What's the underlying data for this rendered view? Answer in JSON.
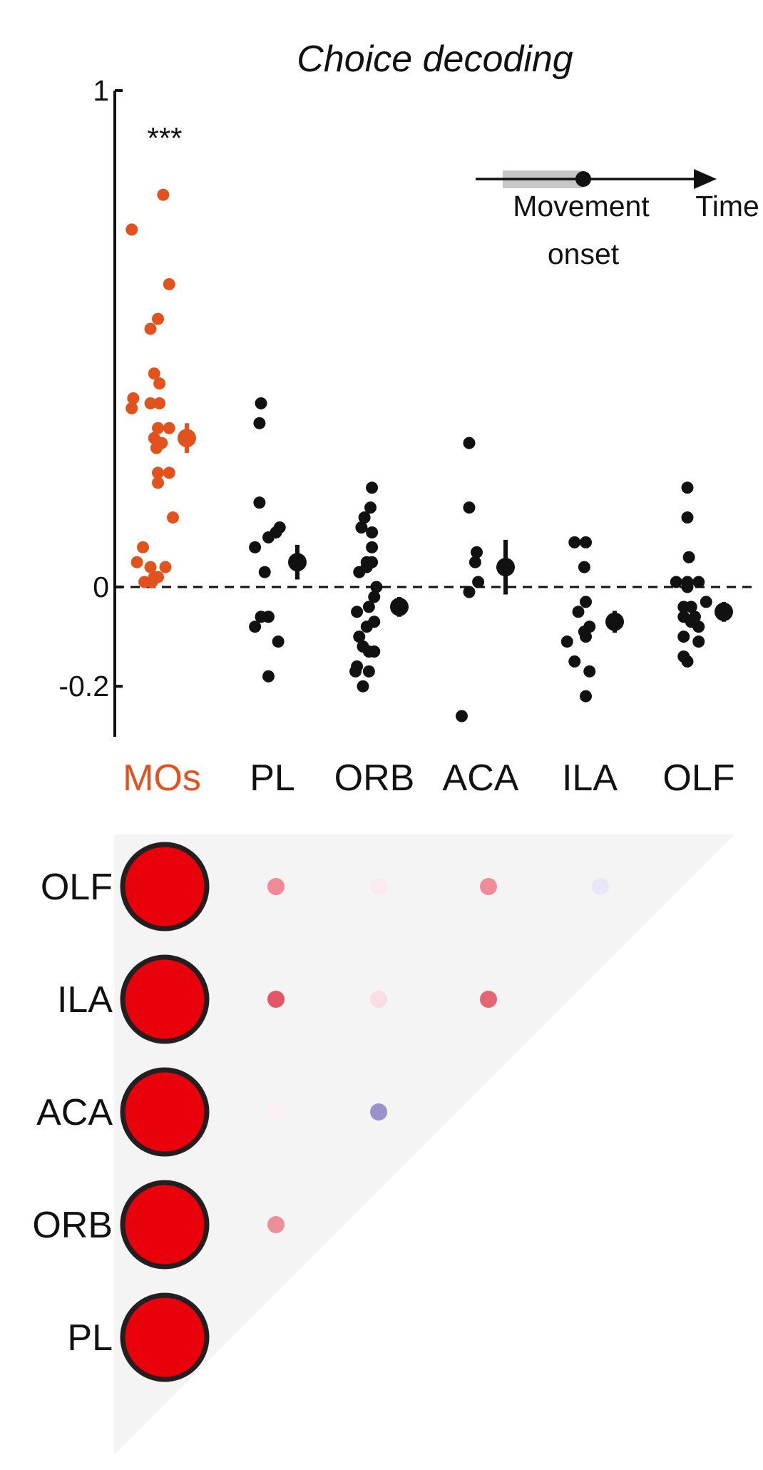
{
  "colors": {
    "mos": "#e2521d",
    "other": "#111111",
    "axis": "#111111",
    "big_dot_fill": "#e8000b",
    "triangle": "#f4f4f5"
  },
  "chart_data": [
    {
      "type": "scatter",
      "title": "Choice decoding",
      "ylim": [
        -0.3,
        1
      ],
      "yticks": [
        {
          "value": 1,
          "label": "1"
        },
        {
          "value": 0,
          "label": "0"
        },
        {
          "value": -0.2,
          "label": "-0.2"
        }
      ],
      "zero_line": "dashed",
      "categories": [
        "MOs",
        "PL",
        "ORB",
        "ACA",
        "ILA",
        "OLF"
      ],
      "significance": {
        "category": "MOs",
        "label": "***"
      },
      "inset": {
        "arrow_label": "Time",
        "marker_label_line1": "Movement",
        "marker_label_line2": "onset"
      },
      "series": [
        {
          "category": "MOs",
          "points": [
            [
              -0.045,
              0.72
            ],
            [
              -0.003,
              0.79
            ],
            [
              0.005,
              0.61
            ],
            [
              -0.02,
              0.52
            ],
            [
              -0.01,
              0.54
            ],
            [
              -0.015,
              0.43
            ],
            [
              -0.008,
              0.41
            ],
            [
              -0.043,
              0.38
            ],
            [
              -0.045,
              0.36
            ],
            [
              -0.02,
              0.37
            ],
            [
              -0.008,
              0.37
            ],
            [
              -0.01,
              0.32
            ],
            [
              -0.015,
              0.3
            ],
            [
              0.005,
              0.32
            ],
            [
              -0.005,
              0.29
            ],
            [
              -0.012,
              0.28
            ],
            [
              -0.01,
              0.23
            ],
            [
              0.005,
              0.23
            ],
            [
              -0.01,
              0.21
            ],
            [
              0.01,
              0.14
            ],
            [
              -0.03,
              0.08
            ],
            [
              -0.038,
              0.05
            ],
            [
              -0.02,
              0.04
            ],
            [
              -0.015,
              0.02
            ],
            [
              0.0,
              0.04
            ],
            [
              -0.028,
              0.01
            ],
            [
              -0.018,
              0.01
            ],
            [
              -0.01,
              0.02
            ]
          ],
          "mean": 0.3,
          "err": 0.03
        },
        {
          "category": "PL",
          "points": [
            [
              -0.02,
              0.37
            ],
            [
              -0.022,
              0.33
            ],
            [
              -0.022,
              0.17
            ],
            [
              -0.028,
              0.08
            ],
            [
              -0.01,
              0.1
            ],
            [
              -0.015,
              0.03
            ],
            [
              0.005,
              0.12
            ],
            [
              0.0,
              0.11
            ],
            [
              -0.028,
              -0.08
            ],
            [
              -0.02,
              -0.06
            ],
            [
              -0.01,
              -0.06
            ],
            [
              0.003,
              -0.11
            ],
            [
              -0.01,
              -0.18
            ]
          ],
          "mean": 0.05,
          "err": 0.035
        },
        {
          "category": "ORB",
          "points": [
            [
              -0.008,
              0.2
            ],
            [
              -0.01,
              0.16
            ],
            [
              -0.018,
              0.14
            ],
            [
              -0.022,
              0.12
            ],
            [
              -0.008,
              0.11
            ],
            [
              -0.015,
              0.04
            ],
            [
              -0.025,
              0.03
            ],
            [
              -0.008,
              0.08
            ],
            [
              -0.015,
              0.05
            ],
            [
              -0.008,
              0.05
            ],
            [
              -0.002,
              0.0
            ],
            [
              -0.005,
              -0.02
            ],
            [
              -0.012,
              -0.04
            ],
            [
              -0.028,
              -0.05
            ],
            [
              -0.015,
              -0.08
            ],
            [
              -0.005,
              -0.07
            ],
            [
              -0.025,
              -0.1
            ],
            [
              -0.02,
              -0.12
            ],
            [
              -0.012,
              -0.13
            ],
            [
              -0.005,
              -0.13
            ],
            [
              -0.028,
              -0.16
            ],
            [
              -0.03,
              -0.17
            ],
            [
              -0.012,
              -0.17
            ],
            [
              -0.02,
              -0.2
            ]
          ],
          "mean": -0.04,
          "err": 0.02
        },
        {
          "category": "ACA",
          "points": [
            [
              -0.02,
              0.29
            ],
            [
              -0.02,
              0.16
            ],
            [
              -0.01,
              0.07
            ],
            [
              -0.012,
              0.05
            ],
            [
              -0.008,
              0.01
            ],
            [
              -0.02,
              -0.01
            ],
            [
              -0.03,
              -0.26
            ]
          ],
          "mean": 0.04,
          "err": 0.055
        },
        {
          "category": "ILA",
          "points": [
            [
              -0.025,
              0.09
            ],
            [
              -0.01,
              0.09
            ],
            [
              -0.012,
              0.04
            ],
            [
              -0.01,
              -0.03
            ],
            [
              -0.02,
              -0.05
            ],
            [
              -0.005,
              -0.08
            ],
            [
              -0.012,
              -0.09
            ],
            [
              -0.01,
              -0.1
            ],
            [
              -0.035,
              -0.11
            ],
            [
              -0.025,
              -0.15
            ],
            [
              -0.005,
              -0.17
            ],
            [
              -0.01,
              -0.22
            ]
          ],
          "mean": -0.07,
          "err": 0.022
        },
        {
          "category": "OLF",
          "points": [
            [
              -0.02,
              0.2
            ],
            [
              -0.02,
              0.14
            ],
            [
              -0.018,
              0.06
            ],
            [
              -0.02,
              0.01
            ],
            [
              -0.005,
              0.01
            ],
            [
              -0.035,
              0.01
            ],
            [
              -0.02,
              0.0
            ],
            [
              0.005,
              -0.03
            ],
            [
              -0.025,
              -0.04
            ],
            [
              -0.015,
              -0.04
            ],
            [
              -0.01,
              -0.06
            ],
            [
              -0.025,
              -0.06
            ],
            [
              -0.015,
              -0.07
            ],
            [
              -0.005,
              -0.08
            ],
            [
              -0.025,
              -0.1
            ],
            [
              -0.005,
              -0.11
            ],
            [
              -0.025,
              -0.14
            ],
            [
              -0.02,
              -0.15
            ]
          ],
          "mean": -0.05,
          "err": 0.02
        }
      ]
    },
    {
      "type": "heatmap",
      "rows": [
        "OLF",
        "ILA",
        "ACA",
        "ORB",
        "PL"
      ],
      "columns": [
        "MOs",
        "PL",
        "ORB",
        "ACA",
        "ILA"
      ],
      "cells": [
        {
          "row": "OLF",
          "col": "MOs",
          "color": "#e8000b",
          "big": true
        },
        {
          "row": "OLF",
          "col": "PL",
          "color": "#ef8a96"
        },
        {
          "row": "OLF",
          "col": "ORB",
          "color": "#fbeaee"
        },
        {
          "row": "OLF",
          "col": "ACA",
          "color": "#f08d97"
        },
        {
          "row": "OLF",
          "col": "ILA",
          "color": "#e9e7f7"
        },
        {
          "row": "ILA",
          "col": "MOs",
          "color": "#e8000b",
          "big": true
        },
        {
          "row": "ILA",
          "col": "PL",
          "color": "#e25666"
        },
        {
          "row": "ILA",
          "col": "ORB",
          "color": "#f8dee3"
        },
        {
          "row": "ILA",
          "col": "ACA",
          "color": "#e46674"
        },
        {
          "row": "ACA",
          "col": "MOs",
          "color": "#e8000b",
          "big": true
        },
        {
          "row": "ACA",
          "col": "PL",
          "color": "#fcf0f2"
        },
        {
          "row": "ACA",
          "col": "ORB",
          "color": "#9a91c9"
        },
        {
          "row": "ORB",
          "col": "MOs",
          "color": "#e8000b",
          "big": true
        },
        {
          "row": "ORB",
          "col": "PL",
          "color": "#ee8e99"
        },
        {
          "row": "PL",
          "col": "MOs",
          "color": "#e8000b",
          "big": true
        }
      ]
    }
  ]
}
